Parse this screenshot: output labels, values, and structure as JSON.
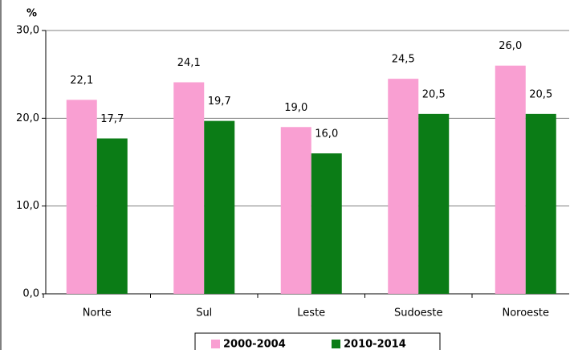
{
  "chart_data": {
    "type": "bar",
    "y_unit": "%",
    "categories": [
      "Norte",
      "Sul",
      "Leste",
      "Sudoeste",
      "Noroeste"
    ],
    "series": [
      {
        "name": "2000-2004",
        "color": "#f99fd2",
        "values": [
          22.1,
          24.1,
          19.0,
          24.5,
          26.0
        ],
        "value_labels": [
          "22,1",
          "24,1",
          "19,0",
          "24,5",
          "26,0"
        ]
      },
      {
        "name": "2010-2014",
        "color": "#0b7c16",
        "values": [
          17.7,
          19.7,
          16.0,
          20.5,
          20.5
        ],
        "value_labels": [
          "17,7",
          "19,7",
          "16,0",
          "20,5",
          "20,5"
        ]
      }
    ],
    "ylim": [
      0,
      30
    ],
    "yticks": [
      {
        "value": 0,
        "label": "0,0"
      },
      {
        "value": 10,
        "label": "10,0"
      },
      {
        "value": 20,
        "label": "20,0"
      },
      {
        "value": 30,
        "label": "30,0"
      }
    ],
    "grid": true
  }
}
